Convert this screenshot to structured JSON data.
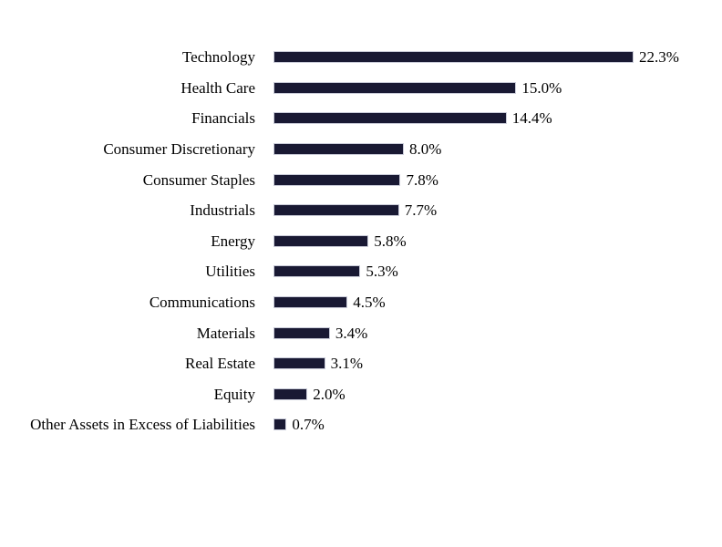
{
  "chart_data": {
    "type": "bar",
    "orientation": "horizontal",
    "title": "",
    "xlabel": "",
    "ylabel": "",
    "xlim": [
      0,
      22.3
    ],
    "grid": false,
    "legend": false,
    "categories": [
      "Technology",
      "Health Care",
      "Financials",
      "Consumer Discretionary",
      "Consumer Staples",
      "Industrials",
      "Energy",
      "Utilities",
      "Communications",
      "Materials",
      "Real Estate",
      "Equity",
      "Other Assets in Excess of Liabilities"
    ],
    "values": [
      22.3,
      15.0,
      14.4,
      8.0,
      7.8,
      7.7,
      5.8,
      5.3,
      4.5,
      3.4,
      3.1,
      2.0,
      0.7
    ],
    "value_labels": [
      "22.3%",
      "15.0%",
      "14.4%",
      "8.0%",
      "7.8%",
      "7.7%",
      "5.8%",
      "5.3%",
      "4.5%",
      "3.4%",
      "3.1%",
      "2.0%",
      "0.7%"
    ],
    "bar_color": "#191933",
    "bar_border_color": "#c9cbd8",
    "text_color": "#000000"
  }
}
